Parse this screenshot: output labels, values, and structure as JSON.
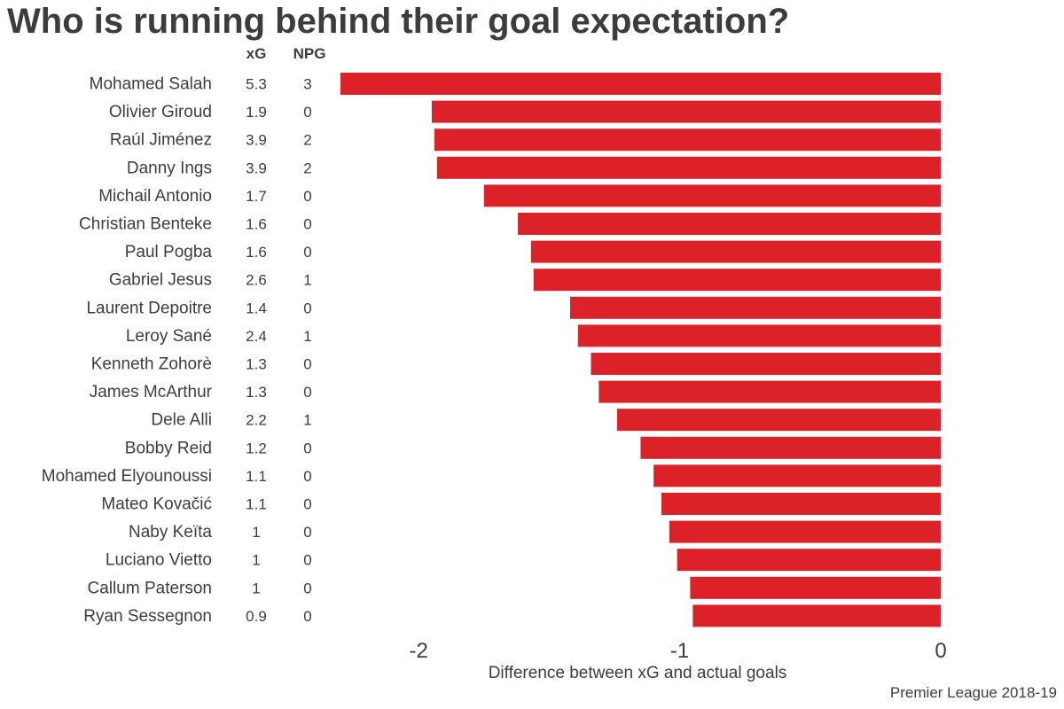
{
  "chart_data": {
    "type": "bar",
    "orientation": "horizontal",
    "title": "Who is running behind their goal expectation?",
    "xlabel": "Difference between xG and actual goals",
    "ylabel": "",
    "caption": "Premier League 2018-19",
    "bar_color": "#dd2129",
    "xlim": [
      -2.32,
      0
    ],
    "xticks": [
      -2,
      -1,
      0
    ],
    "xtick_labels": [
      "-2",
      "-1",
      "0"
    ],
    "grid": false,
    "columns": {
      "xg_header": "xG",
      "npg_header": "NPG"
    },
    "rows": [
      {
        "player": "Mohamed Salah",
        "xg": "5.3",
        "npg": "3",
        "value": -2.3
      },
      {
        "player": "Olivier Giroud",
        "xg": "1.9",
        "npg": "0",
        "value": -1.95
      },
      {
        "player": "Raúl Jiménez",
        "xg": "3.9",
        "npg": "2",
        "value": -1.94
      },
      {
        "player": "Danny Ings",
        "xg": "3.9",
        "npg": "2",
        "value": -1.93
      },
      {
        "player": "Michail Antonio",
        "xg": "1.7",
        "npg": "0",
        "value": -1.75
      },
      {
        "player": "Christian Benteke",
        "xg": "1.6",
        "npg": "0",
        "value": -1.62
      },
      {
        "player": "Paul Pogba",
        "xg": "1.6",
        "npg": "0",
        "value": -1.57
      },
      {
        "player": "Gabriel Jesus",
        "xg": "2.6",
        "npg": "1",
        "value": -1.56
      },
      {
        "player": "Laurent Depoitre",
        "xg": "1.4",
        "npg": "0",
        "value": -1.42
      },
      {
        "player": "Leroy Sané",
        "xg": "2.4",
        "npg": "1",
        "value": -1.39
      },
      {
        "player": "Kenneth Zohorè",
        "xg": "1.3",
        "npg": "0",
        "value": -1.34
      },
      {
        "player": "James McArthur",
        "xg": "1.3",
        "npg": "0",
        "value": -1.31
      },
      {
        "player": "Dele Alli",
        "xg": "2.2",
        "npg": "1",
        "value": -1.24
      },
      {
        "player": "Bobby Reid",
        "xg": "1.2",
        "npg": "0",
        "value": -1.15
      },
      {
        "player": "Mohamed Elyounoussi",
        "xg": "1.1",
        "npg": "0",
        "value": -1.1
      },
      {
        "player": "Mateo Kovačić",
        "xg": "1.1",
        "npg": "0",
        "value": -1.07
      },
      {
        "player": "Naby Keïta",
        "xg": "1",
        "npg": "0",
        "value": -1.04
      },
      {
        "player": "Luciano Vietto",
        "xg": "1",
        "npg": "0",
        "value": -1.01
      },
      {
        "player": "Callum Paterson",
        "xg": "1",
        "npg": "0",
        "value": -0.96
      },
      {
        "player": "Ryan Sessegnon",
        "xg": "0.9",
        "npg": "0",
        "value": -0.95
      }
    ]
  }
}
